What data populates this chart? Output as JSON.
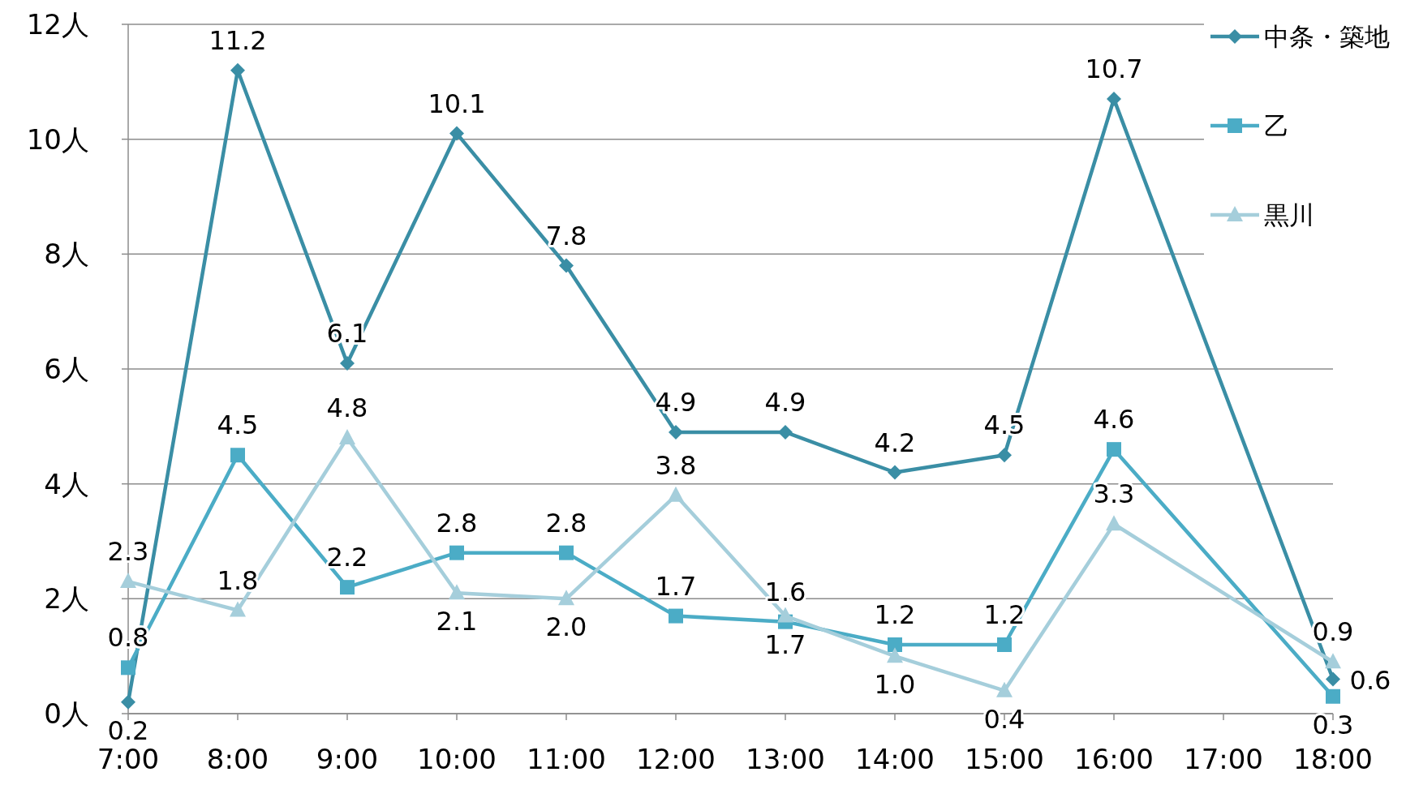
{
  "chart_data": {
    "type": "line",
    "categories": [
      "7:00",
      "8:00",
      "9:00",
      "10:00",
      "11:00",
      "12:00",
      "13:00",
      "14:00",
      "15:00",
      "16:00",
      "17:00",
      "18:00"
    ],
    "series": [
      {
        "name": "中条・築地",
        "color": "#3a8ea5",
        "marker": "diamond",
        "values": [
          0.2,
          11.2,
          6.1,
          10.1,
          7.8,
          4.9,
          4.9,
          4.2,
          4.5,
          10.7,
          null,
          0.6
        ],
        "value_labels": [
          "0.2",
          "11.2",
          "6.1",
          "10.1",
          "7.8",
          "4.9",
          "4.9",
          "4.2",
          "4.5",
          "10.7",
          null,
          "0.6"
        ]
      },
      {
        "name": "乙",
        "color": "#4bacc6",
        "marker": "square",
        "values": [
          0.8,
          4.5,
          2.2,
          2.8,
          2.8,
          1.7,
          1.6,
          1.2,
          1.2,
          4.6,
          null,
          0.3
        ],
        "value_labels": [
          "0.8",
          "4.5",
          "2.2",
          "2.8",
          "2.8",
          "1.7",
          "1.6",
          "1.2",
          "1.2",
          "4.6",
          null,
          "0.3"
        ]
      },
      {
        "name": "黒川",
        "color": "#a5cedb",
        "marker": "triangle",
        "values": [
          2.3,
          1.8,
          4.8,
          2.1,
          2.0,
          3.8,
          1.7,
          1.0,
          0.4,
          3.3,
          null,
          0.9
        ],
        "value_labels": [
          "2.3",
          "1.8",
          "4.8",
          "2.1",
          "2.0",
          "3.8",
          "1.7",
          "1.0",
          "0.4",
          "3.3",
          null,
          "0.9"
        ]
      }
    ],
    "ylim": [
      0,
      12
    ],
    "yticks": [
      {
        "value": 0,
        "label": "0人"
      },
      {
        "value": 2,
        "label": "2人"
      },
      {
        "value": 4,
        "label": "4人"
      },
      {
        "value": 6,
        "label": "6人"
      },
      {
        "value": 8,
        "label": "8人"
      },
      {
        "value": 10,
        "label": "10人"
      },
      {
        "value": 12,
        "label": "12人"
      }
    ],
    "grid": "y",
    "legend": "top right"
  }
}
